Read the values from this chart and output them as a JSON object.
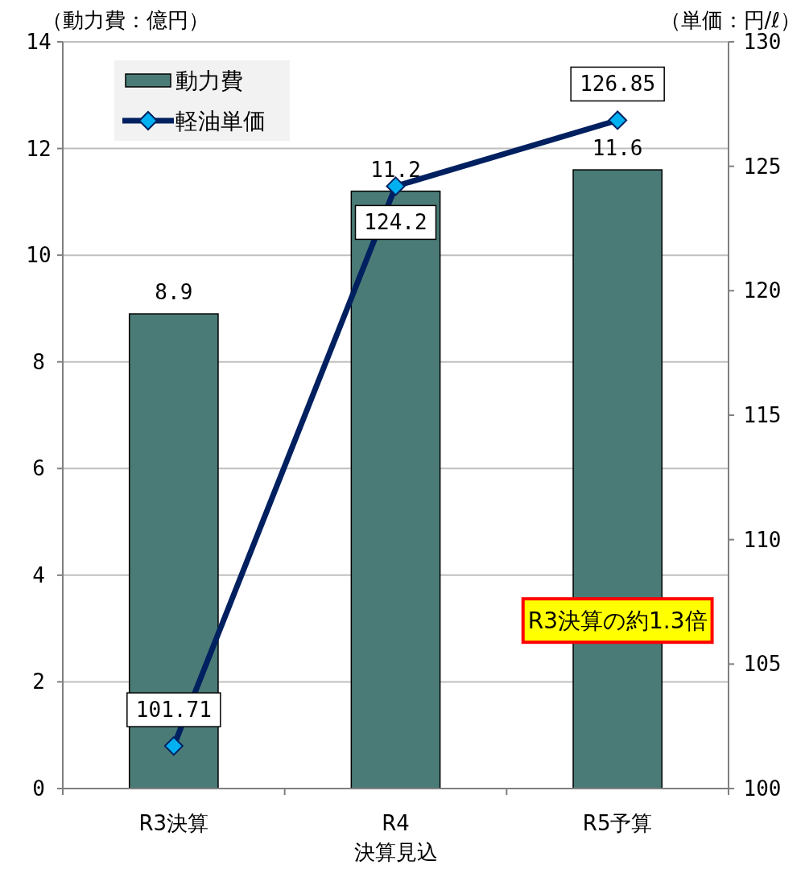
{
  "chart_data": {
    "type": "bar",
    "ylabel": "（動力費：億円）",
    "y2label": "（単価：円/ℓ）",
    "categories": [
      "R3決算",
      "R4\n決算見込",
      "R5予算"
    ],
    "series": [
      {
        "name": "動力費",
        "color": "#4a7b77",
        "values": [
          8.9,
          11.2,
          11.6
        ]
      },
      {
        "name": "軽油単価",
        "type": "line",
        "axis": "y2",
        "color": "#002060",
        "marker": "diamond",
        "values": [
          101.71,
          124.2,
          126.85
        ]
      }
    ],
    "ylim": [
      0,
      14
    ],
    "yticks": [
      0,
      2,
      4,
      6,
      8,
      10,
      12,
      14
    ],
    "y2lim": [
      100,
      130
    ],
    "y2ticks": [
      100,
      105,
      110,
      115,
      120,
      125,
      130
    ],
    "data_labels": true,
    "grid": "y",
    "legend": "top left",
    "annotations": [
      "R3決算の約1.3倍"
    ]
  }
}
